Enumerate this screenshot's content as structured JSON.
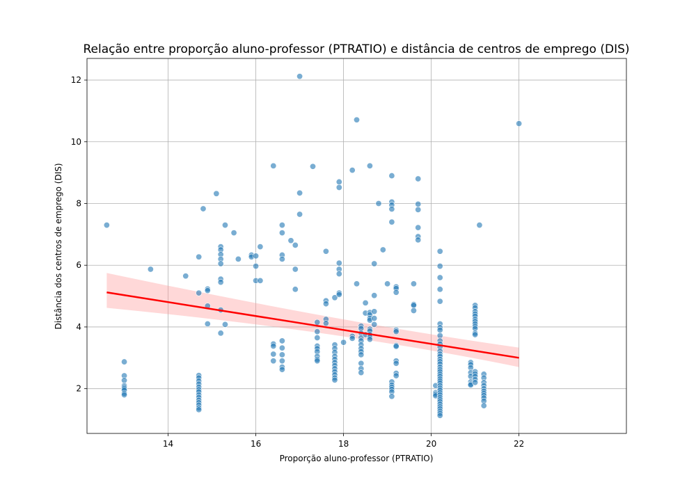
{
  "chart_data": {
    "type": "scatter",
    "title": "Relação entre proporção aluno-professor (PTRATIO) e distância de centros de emprego (DIS)",
    "xlabel": "Proporção aluno-professor (PTRATIO)",
    "ylabel": "Distância dos centros de emprego (DIS)",
    "xlim": [
      12.15,
      24.45
    ],
    "ylim": [
      0.55,
      12.7
    ],
    "xticks": [
      14,
      16,
      18,
      20,
      22
    ],
    "yticks": [
      2,
      4,
      6,
      8,
      10,
      12
    ],
    "grid": true,
    "colors": {
      "points": "#1f77b4",
      "regression_line": "#ff0000",
      "confidence_band": "#ff9999"
    },
    "regression": {
      "x_start": 12.6,
      "y_start": 5.12,
      "x_end": 22.0,
      "y_end": 3.0,
      "band_start": [
        4.62,
        5.75
      ],
      "band_mid_x": 18.0,
      "band_mid": [
        3.82,
        4.18
      ],
      "band_end": [
        2.7,
        3.33
      ]
    },
    "points": [
      [
        12.6,
        7.3
      ],
      [
        13.0,
        2.87
      ],
      [
        13.0,
        2.42
      ],
      [
        13.0,
        2.27
      ],
      [
        13.0,
        2.1
      ],
      [
        13.0,
        2.05
      ],
      [
        13.0,
        2.0
      ],
      [
        13.0,
        1.95
      ],
      [
        13.0,
        1.85
      ],
      [
        13.0,
        1.8
      ],
      [
        13.6,
        5.87
      ],
      [
        14.4,
        5.65
      ],
      [
        14.7,
        6.27
      ],
      [
        14.7,
        5.1
      ],
      [
        14.7,
        2.43
      ],
      [
        14.7,
        2.35
      ],
      [
        14.7,
        2.25
      ],
      [
        14.7,
        2.15
      ],
      [
        14.7,
        2.05
      ],
      [
        14.7,
        1.97
      ],
      [
        14.7,
        1.9
      ],
      [
        14.7,
        1.8
      ],
      [
        14.7,
        1.72
      ],
      [
        14.7,
        1.63
      ],
      [
        14.7,
        1.55
      ],
      [
        14.7,
        1.47
      ],
      [
        14.7,
        1.38
      ],
      [
        14.7,
        1.32
      ],
      [
        14.8,
        7.83
      ],
      [
        14.9,
        5.23
      ],
      [
        14.9,
        5.18
      ],
      [
        14.9,
        4.68
      ],
      [
        14.9,
        4.1
      ],
      [
        15.1,
        8.32
      ],
      [
        15.2,
        6.6
      ],
      [
        15.2,
        6.5
      ],
      [
        15.2,
        6.35
      ],
      [
        15.2,
        6.2
      ],
      [
        15.2,
        6.05
      ],
      [
        15.2,
        5.55
      ],
      [
        15.2,
        5.45
      ],
      [
        15.2,
        4.55
      ],
      [
        15.2,
        3.8
      ],
      [
        15.3,
        7.3
      ],
      [
        15.3,
        4.08
      ],
      [
        15.5,
        7.05
      ],
      [
        15.6,
        6.2
      ],
      [
        15.9,
        6.33
      ],
      [
        15.9,
        6.27
      ],
      [
        16.0,
        6.3
      ],
      [
        16.0,
        5.97
      ],
      [
        16.0,
        5.5
      ],
      [
        16.1,
        6.6
      ],
      [
        16.1,
        5.5
      ],
      [
        16.4,
        9.22
      ],
      [
        16.4,
        3.45
      ],
      [
        16.4,
        3.38
      ],
      [
        16.4,
        3.12
      ],
      [
        16.4,
        2.9
      ],
      [
        16.6,
        7.3
      ],
      [
        16.6,
        7.05
      ],
      [
        16.6,
        6.33
      ],
      [
        16.6,
        6.2
      ],
      [
        16.6,
        3.55
      ],
      [
        16.6,
        3.32
      ],
      [
        16.6,
        3.1
      ],
      [
        16.6,
        2.9
      ],
      [
        16.6,
        2.7
      ],
      [
        16.6,
        2.62
      ],
      [
        16.8,
        6.8
      ],
      [
        16.9,
        6.65
      ],
      [
        16.9,
        5.87
      ],
      [
        16.9,
        5.22
      ],
      [
        17.0,
        12.12
      ],
      [
        17.0,
        8.34
      ],
      [
        17.0,
        7.65
      ],
      [
        17.3,
        9.2
      ],
      [
        17.4,
        4.15
      ],
      [
        17.4,
        3.85
      ],
      [
        17.4,
        3.65
      ],
      [
        17.4,
        3.38
      ],
      [
        17.4,
        3.3
      ],
      [
        17.4,
        3.2
      ],
      [
        17.4,
        3.05
      ],
      [
        17.4,
        2.95
      ],
      [
        17.4,
        2.9
      ],
      [
        17.6,
        6.45
      ],
      [
        17.6,
        4.85
      ],
      [
        17.6,
        4.75
      ],
      [
        17.6,
        4.25
      ],
      [
        17.6,
        4.12
      ],
      [
        17.8,
        4.95
      ],
      [
        17.8,
        3.42
      ],
      [
        17.8,
        3.3
      ],
      [
        17.8,
        3.18
      ],
      [
        17.8,
        3.05
      ],
      [
        17.8,
        2.95
      ],
      [
        17.8,
        2.85
      ],
      [
        17.8,
        2.75
      ],
      [
        17.8,
        2.65
      ],
      [
        17.8,
        2.55
      ],
      [
        17.8,
        2.45
      ],
      [
        17.8,
        2.35
      ],
      [
        17.8,
        2.28
      ],
      [
        17.9,
        8.7
      ],
      [
        17.9,
        8.52
      ],
      [
        17.9,
        6.07
      ],
      [
        17.9,
        5.87
      ],
      [
        17.9,
        5.72
      ],
      [
        17.9,
        5.1
      ],
      [
        17.9,
        5.05
      ],
      [
        18.0,
        3.5
      ],
      [
        18.2,
        9.08
      ],
      [
        18.2,
        3.7
      ],
      [
        18.2,
        3.63
      ],
      [
        18.3,
        10.71
      ],
      [
        18.3,
        5.4
      ],
      [
        18.4,
        4.03
      ],
      [
        18.4,
        3.95
      ],
      [
        18.4,
        3.8
      ],
      [
        18.4,
        3.65
      ],
      [
        18.4,
        3.55
      ],
      [
        18.4,
        3.42
      ],
      [
        18.4,
        3.3
      ],
      [
        18.4,
        3.2
      ],
      [
        18.4,
        3.1
      ],
      [
        18.4,
        2.82
      ],
      [
        18.4,
        2.65
      ],
      [
        18.4,
        2.52
      ],
      [
        18.5,
        4.78
      ],
      [
        18.5,
        4.45
      ],
      [
        18.5,
        3.75
      ],
      [
        18.6,
        9.22
      ],
      [
        18.6,
        4.47
      ],
      [
        18.6,
        4.4
      ],
      [
        18.6,
        4.28
      ],
      [
        18.6,
        4.22
      ],
      [
        18.6,
        3.93
      ],
      [
        18.6,
        3.87
      ],
      [
        18.6,
        3.75
      ],
      [
        18.6,
        3.67
      ],
      [
        18.6,
        3.6
      ],
      [
        18.7,
        6.05
      ],
      [
        18.7,
        5.02
      ],
      [
        18.7,
        4.5
      ],
      [
        18.7,
        4.28
      ],
      [
        18.7,
        4.08
      ],
      [
        18.8,
        8.0
      ],
      [
        18.9,
        6.5
      ],
      [
        19.0,
        5.4
      ],
      [
        19.1,
        8.9
      ],
      [
        19.1,
        8.05
      ],
      [
        19.1,
        7.95
      ],
      [
        19.1,
        7.82
      ],
      [
        19.1,
        7.4
      ],
      [
        19.1,
        2.22
      ],
      [
        19.1,
        2.12
      ],
      [
        19.1,
        2.05
      ],
      [
        19.1,
        1.98
      ],
      [
        19.1,
        1.9
      ],
      [
        19.1,
        1.75
      ],
      [
        19.2,
        5.3
      ],
      [
        19.2,
        5.25
      ],
      [
        19.2,
        5.12
      ],
      [
        19.2,
        3.9
      ],
      [
        19.2,
        3.85
      ],
      [
        19.2,
        3.4
      ],
      [
        19.2,
        3.37
      ],
      [
        19.2,
        2.9
      ],
      [
        19.2,
        2.82
      ],
      [
        19.2,
        2.5
      ],
      [
        19.2,
        2.42
      ],
      [
        19.6,
        5.4
      ],
      [
        19.6,
        4.73
      ],
      [
        19.6,
        4.7
      ],
      [
        19.6,
        4.53
      ],
      [
        19.7,
        8.8
      ],
      [
        19.7,
        7.98
      ],
      [
        19.7,
        7.8
      ],
      [
        19.7,
        7.22
      ],
      [
        19.7,
        6.93
      ],
      [
        19.7,
        6.82
      ],
      [
        20.1,
        2.1
      ],
      [
        20.1,
        1.87
      ],
      [
        20.1,
        1.82
      ],
      [
        20.1,
        1.77
      ],
      [
        20.2,
        6.45
      ],
      [
        20.2,
        5.97
      ],
      [
        20.2,
        5.6
      ],
      [
        20.2,
        5.22
      ],
      [
        20.2,
        4.83
      ],
      [
        20.2,
        4.1
      ],
      [
        20.2,
        3.98
      ],
      [
        20.2,
        3.9
      ],
      [
        20.2,
        3.72
      ],
      [
        20.2,
        3.55
      ],
      [
        20.2,
        3.45
      ],
      [
        20.2,
        3.35
      ],
      [
        20.2,
        3.22
      ],
      [
        20.2,
        3.12
      ],
      [
        20.2,
        3.05
      ],
      [
        20.2,
        2.95
      ],
      [
        20.2,
        2.88
      ],
      [
        20.2,
        2.8
      ],
      [
        20.2,
        2.7
      ],
      [
        20.2,
        2.62
      ],
      [
        20.2,
        2.55
      ],
      [
        20.2,
        2.47
      ],
      [
        20.2,
        2.4
      ],
      [
        20.2,
        2.32
      ],
      [
        20.2,
        2.25
      ],
      [
        20.2,
        2.18
      ],
      [
        20.2,
        2.1
      ],
      [
        20.2,
        2.02
      ],
      [
        20.2,
        1.95
      ],
      [
        20.2,
        1.87
      ],
      [
        20.2,
        1.8
      ],
      [
        20.2,
        1.72
      ],
      [
        20.2,
        1.65
      ],
      [
        20.2,
        1.58
      ],
      [
        20.2,
        1.5
      ],
      [
        20.2,
        1.42
      ],
      [
        20.2,
        1.35
      ],
      [
        20.2,
        1.27
      ],
      [
        20.2,
        1.2
      ],
      [
        20.2,
        1.13
      ],
      [
        20.9,
        2.85
      ],
      [
        20.9,
        2.78
      ],
      [
        20.9,
        2.68
      ],
      [
        20.9,
        2.52
      ],
      [
        20.9,
        2.4
      ],
      [
        20.9,
        2.22
      ],
      [
        20.9,
        2.15
      ],
      [
        20.9,
        2.12
      ],
      [
        21.0,
        4.7
      ],
      [
        21.0,
        4.62
      ],
      [
        21.0,
        4.5
      ],
      [
        21.0,
        4.42
      ],
      [
        21.0,
        4.35
      ],
      [
        21.0,
        4.25
      ],
      [
        21.0,
        4.18
      ],
      [
        21.0,
        4.1
      ],
      [
        21.0,
        4.02
      ],
      [
        21.0,
        3.95
      ],
      [
        21.0,
        3.8
      ],
      [
        21.0,
        3.75
      ],
      [
        21.0,
        2.55
      ],
      [
        21.0,
        2.48
      ],
      [
        21.0,
        2.4
      ],
      [
        21.0,
        2.3
      ],
      [
        21.0,
        2.2
      ],
      [
        21.1,
        7.3
      ],
      [
        21.2,
        2.47
      ],
      [
        21.2,
        2.35
      ],
      [
        21.2,
        2.2
      ],
      [
        21.2,
        2.1
      ],
      [
        21.2,
        2.0
      ],
      [
        21.2,
        1.92
      ],
      [
        21.2,
        1.85
      ],
      [
        21.2,
        1.78
      ],
      [
        21.2,
        1.7
      ],
      [
        21.2,
        1.6
      ],
      [
        21.2,
        1.45
      ],
      [
        22.0,
        10.59
      ]
    ]
  }
}
